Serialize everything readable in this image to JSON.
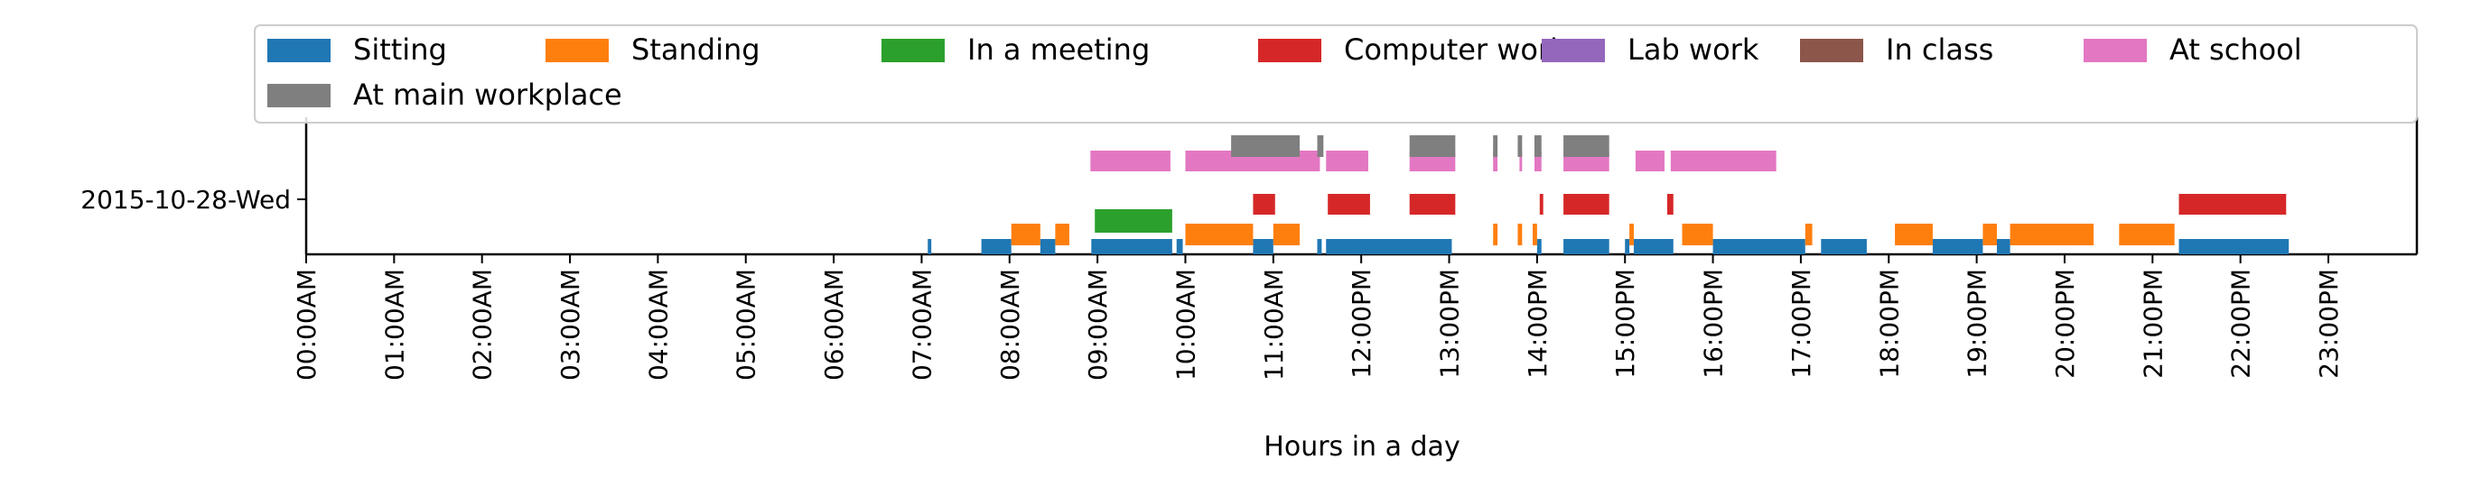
{
  "chart_data": {
    "type": "bar",
    "orientation": "horizontal-timeline",
    "title": "",
    "xlabel": "Hours in a day",
    "ylabel": "",
    "xlim": [
      0,
      24
    ],
    "x_tick_labels": [
      "00:00AM",
      "01:00AM",
      "02:00AM",
      "03:00AM",
      "04:00AM",
      "05:00AM",
      "06:00AM",
      "07:00AM",
      "08:00AM",
      "09:00AM",
      "10:00AM",
      "11:00AM",
      "12:00PM",
      "13:00PM",
      "14:00PM",
      "15:00PM",
      "16:00PM",
      "17:00PM",
      "18:00PM",
      "19:00PM",
      "20:00PM",
      "21:00PM",
      "22:00PM",
      "23:00PM"
    ],
    "y_tick_labels": [
      "2015-10-28-Wed"
    ],
    "grid": false,
    "legend": {
      "placement": "top",
      "columns": 7
    },
    "series": [
      {
        "name": "Sitting",
        "color": "#1f77b4",
        "lane": 0,
        "intervals": [
          [
            7.07,
            7.11
          ],
          [
            7.68,
            8.02
          ],
          [
            8.35,
            8.52
          ],
          [
            8.93,
            9.85
          ],
          [
            9.9,
            9.97
          ],
          [
            10.77,
            11.0
          ],
          [
            11.5,
            11.55
          ],
          [
            11.6,
            13.03
          ],
          [
            14.0,
            14.05
          ],
          [
            14.3,
            14.82
          ],
          [
            15.0,
            15.05
          ],
          [
            15.1,
            15.55
          ],
          [
            16.0,
            17.05
          ],
          [
            17.23,
            17.75
          ],
          [
            18.5,
            19.07
          ],
          [
            19.23,
            19.38
          ],
          [
            21.3,
            22.55
          ]
        ]
      },
      {
        "name": "Standing",
        "color": "#ff7f0e",
        "lane": 0,
        "intervals": [
          [
            8.02,
            8.35
          ],
          [
            8.52,
            8.68
          ],
          [
            10.0,
            10.77
          ],
          [
            11.0,
            11.3
          ],
          [
            13.5,
            13.55
          ],
          [
            13.78,
            13.83
          ],
          [
            13.95,
            14.0
          ],
          [
            15.05,
            15.1
          ],
          [
            15.65,
            16.0
          ],
          [
            17.05,
            17.13
          ],
          [
            18.07,
            18.5
          ],
          [
            19.07,
            19.23
          ],
          [
            19.38,
            20.33
          ],
          [
            20.62,
            21.25
          ]
        ]
      },
      {
        "name": "In a meeting",
        "color": "#2ca02c",
        "lane": 1,
        "intervals": [
          [
            8.97,
            9.85
          ]
        ]
      },
      {
        "name": "Computer work",
        "color": "#d62728",
        "lane": 2,
        "intervals": [
          [
            10.77,
            11.02
          ],
          [
            11.62,
            12.1
          ],
          [
            12.55,
            13.07
          ],
          [
            14.03,
            14.07
          ],
          [
            14.3,
            14.82
          ],
          [
            15.48,
            15.55
          ],
          [
            21.3,
            22.52
          ]
        ]
      },
      {
        "name": "Lab work",
        "color": "#9467bd",
        "lane": 3,
        "intervals": []
      },
      {
        "name": "In class",
        "color": "#8c564b",
        "lane": 4,
        "intervals": []
      },
      {
        "name": "At school",
        "color": "#e377c2",
        "lane": 5,
        "intervals": [
          [
            8.92,
            9.83
          ],
          [
            10.0,
            11.53
          ],
          [
            11.6,
            12.08
          ],
          [
            12.55,
            13.07
          ],
          [
            13.5,
            13.55
          ],
          [
            13.8,
            13.83
          ],
          [
            13.97,
            14.05
          ],
          [
            14.3,
            14.82
          ],
          [
            15.12,
            15.45
          ],
          [
            15.52,
            16.72
          ]
        ]
      },
      {
        "name": "At main workplace",
        "color": "#7f7f7f",
        "lane": 6,
        "intervals": [
          [
            10.52,
            11.3
          ],
          [
            11.5,
            11.57
          ],
          [
            12.55,
            13.07
          ],
          [
            13.5,
            13.55
          ],
          [
            13.78,
            13.83
          ],
          [
            13.97,
            14.05
          ],
          [
            14.3,
            14.82
          ]
        ]
      }
    ]
  }
}
